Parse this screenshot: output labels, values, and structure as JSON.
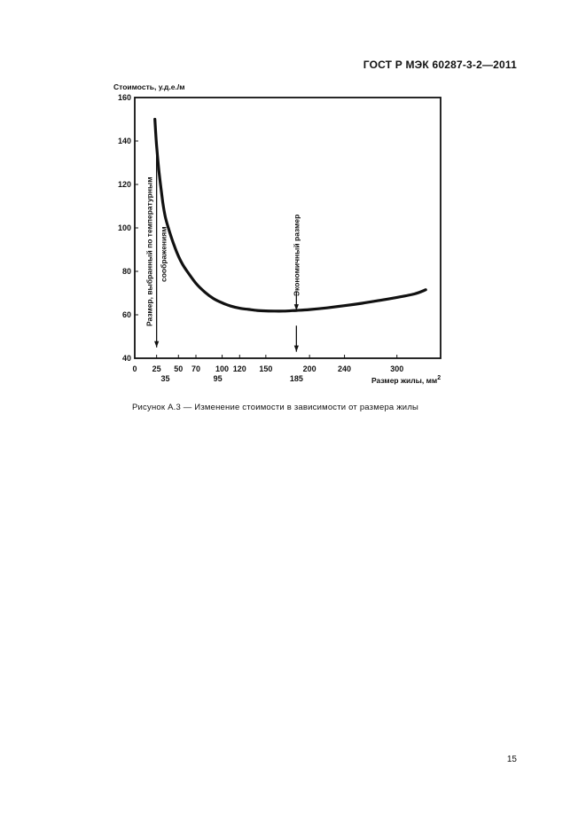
{
  "header": {
    "doc_id": "ГОСТ Р МЭК 60287-3-2—2011"
  },
  "caption": "Рисунок А.3 — Изменение стоимости в зависимости от размера жилы",
  "page_number": "15",
  "chart_data": {
    "type": "line",
    "ylabel": "Стоимость, у.д.е./м",
    "xlabel": "Размер жилы, мм",
    "xlabel_sup": "2",
    "ylim": [
      40,
      160
    ],
    "xlim": [
      0,
      350
    ],
    "y_ticks": [
      40,
      60,
      80,
      100,
      120,
      140,
      160
    ],
    "x_ticks_top": [
      0,
      25,
      50,
      70,
      100,
      120,
      150,
      200,
      240,
      300
    ],
    "x_ticks_bottom": [
      35,
      95,
      185
    ],
    "grid": false,
    "series": [
      {
        "x": [
          23,
          25,
          28,
          32,
          35,
          40,
          45,
          50,
          55,
          60,
          70,
          80,
          90,
          100,
          110,
          120,
          130,
          140,
          150,
          160,
          170,
          180,
          185,
          200,
          220,
          240,
          260,
          280,
          300,
          320,
          333
        ],
        "y": [
          150,
          138,
          125,
          112,
          105,
          98,
          92,
          87,
          83,
          80,
          74.5,
          70.5,
          67.5,
          65.5,
          64,
          63,
          62.5,
          62,
          61.8,
          61.7,
          61.7,
          61.9,
          62,
          62.4,
          63.2,
          64.2,
          65.3,
          66.6,
          68,
          69.6,
          71.5
        ]
      }
    ],
    "annotations": [
      {
        "text": "Размер, выбранный по температурным соображениям",
        "x": 25,
        "arrow_from_y": 140,
        "arrow_to_y": 45
      },
      {
        "text": "Экономичный размер",
        "x": 185,
        "arrow_from_y": 70,
        "arrow_to_y": 62,
        "arrow2_from_y": 55,
        "arrow2_to_y": 43
      }
    ]
  }
}
